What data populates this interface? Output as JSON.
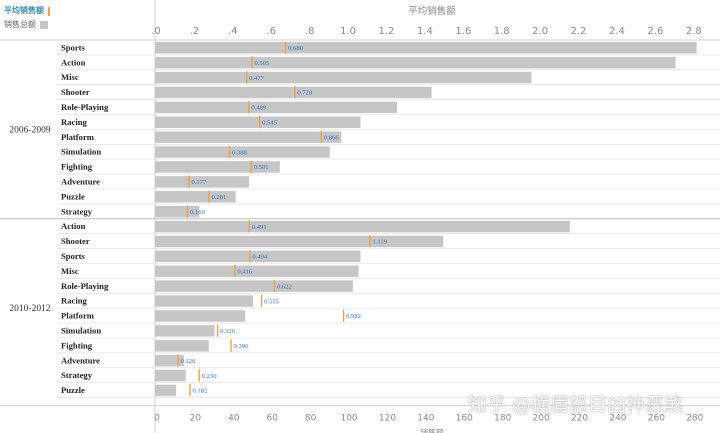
{
  "legend": {
    "avg_label": "平均销售额",
    "total_label": "销售总额"
  },
  "colors": {
    "bar": "#c6c6c6",
    "avg_marker": "#f0a040",
    "avg_text": "#2a6fcf",
    "grid": "#dcdcdc",
    "axis_text": "#8a8a8a"
  },
  "watermark": "知乎 @横眉怒目凶神恶煞",
  "chart_data": {
    "type": "bar",
    "orientation": "horizontal",
    "top_axis": {
      "title": "平均销售额",
      "range": [
        0,
        2.9
      ],
      "ticks": [
        0,
        0.2,
        0.4,
        0.6,
        0.8,
        1.0,
        1.2,
        1.4,
        1.6,
        1.8,
        2.0,
        2.2,
        2.4,
        2.6,
        2.8
      ],
      "tick_labels": [
        ".0",
        ".2",
        ".4",
        ".6",
        ".8",
        "1.0",
        "1.2",
        "1.4",
        "1.6",
        "1.8",
        "2.0",
        "2.2",
        "2.4",
        "2.6",
        "2.8"
      ]
    },
    "bottom_axis": {
      "title": "销售额",
      "range": [
        0,
        290
      ],
      "ticks": [
        0,
        20,
        40,
        60,
        80,
        100,
        120,
        140,
        160,
        180,
        200,
        220,
        240,
        260,
        280
      ],
      "tick_labels": [
        "0",
        "20",
        "40",
        "60",
        "80",
        "100",
        "120",
        "140",
        "160",
        "180",
        "200",
        "220",
        "240",
        "260",
        "280"
      ]
    },
    "groups": [
      {
        "label": "2006-2009",
        "rows": [
          {
            "genre": "Sports",
            "total": 282,
            "avg": 0.68,
            "avg_label": "0.680"
          },
          {
            "genre": "Action",
            "total": 271,
            "avg": 0.505,
            "avg_label": "0.505"
          },
          {
            "genre": "Misc",
            "total": 196,
            "avg": 0.477,
            "avg_label": "0.477"
          },
          {
            "genre": "Shooter",
            "total": 144,
            "avg": 0.728,
            "avg_label": "0.728"
          },
          {
            "genre": "Role-Playing",
            "total": 126,
            "avg": 0.489,
            "avg_label": "0.489"
          },
          {
            "genre": "Racing",
            "total": 107,
            "avg": 0.545,
            "avg_label": "0.545"
          },
          {
            "genre": "Platform",
            "total": 97,
            "avg": 0.866,
            "avg_label": "0.866"
          },
          {
            "genre": "Simulation",
            "total": 91,
            "avg": 0.388,
            "avg_label": "0.388"
          },
          {
            "genre": "Fighting",
            "total": 65,
            "avg": 0.501,
            "avg_label": "0.501"
          },
          {
            "genre": "Adventure",
            "total": 49,
            "avg": 0.177,
            "avg_label": "0.177"
          },
          {
            "genre": "Puzzle",
            "total": 42,
            "avg": 0.281,
            "avg_label": "0.281"
          },
          {
            "genre": "Strategy",
            "total": 23,
            "avg": 0.169,
            "avg_label": "0.169"
          }
        ]
      },
      {
        "label": "2010-2012",
        "rows": [
          {
            "genre": "Action",
            "total": 216,
            "avg": 0.491,
            "avg_label": "0.491"
          },
          {
            "genre": "Shooter",
            "total": 150,
            "avg": 1.119,
            "avg_label": "1.119"
          },
          {
            "genre": "Sports",
            "total": 107,
            "avg": 0.494,
            "avg_label": "0.494"
          },
          {
            "genre": "Misc",
            "total": 106,
            "avg": 0.416,
            "avg_label": "0.416"
          },
          {
            "genre": "Role-Playing",
            "total": 103,
            "avg": 0.622,
            "avg_label": "0.622"
          },
          {
            "genre": "Racing",
            "total": 51,
            "avg": 0.555,
            "avg_label": "0.555"
          },
          {
            "genre": "Platform",
            "total": 47,
            "avg": 0.982,
            "avg_label": "0.982"
          },
          {
            "genre": "Simulation",
            "total": 31,
            "avg": 0.326,
            "avg_label": "0.326"
          },
          {
            "genre": "Fighting",
            "total": 28,
            "avg": 0.396,
            "avg_label": "0.396"
          },
          {
            "genre": "Adventure",
            "total": 15,
            "avg": 0.12,
            "avg_label": "0.120"
          },
          {
            "genre": "Strategy",
            "total": 16,
            "avg": 0.23,
            "avg_label": "0.230"
          },
          {
            "genre": "Puzzle",
            "total": 11,
            "avg": 0.182,
            "avg_label": "0.182"
          }
        ]
      }
    ]
  }
}
